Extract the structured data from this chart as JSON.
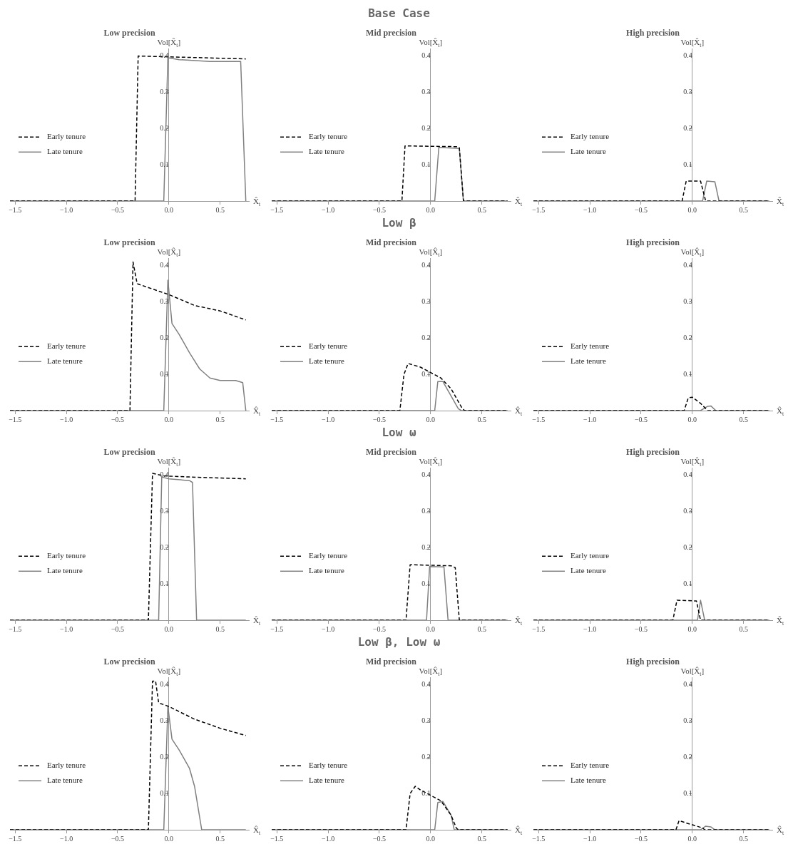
{
  "chart_data": [
    {
      "type": "line",
      "title": "Low precision",
      "xlabel": "X̂$_{t}$",
      "ylabel": "Vol[X̂$_{t}$]",
      "xlim": [
        -1.55,
        0.78
      ],
      "ylim": [
        0,
        0.42
      ],
      "xticks": [
        {
          "value": -1.5,
          "label": "−1.5"
        },
        {
          "value": -1,
          "label": "−1.0"
        },
        {
          "value": -0.5,
          "label": "−0.5"
        },
        {
          "value": 0,
          "label": "0.0"
        },
        {
          "value": 0.5,
          "label": "0.5"
        }
      ],
      "yticks": [
        0.1,
        0.2,
        0.3,
        0.4
      ],
      "legend": "left",
      "marker": "none",
      "series": [
        {
          "name": "Early tenure",
          "color": "#000000",
          "line_style": "dashed",
          "x": [
            -1.55,
            -0.33,
            -0.3,
            0.75
          ],
          "values": [
            0,
            0,
            0.4,
            0.392
          ]
        },
        {
          "name": "Late tenure",
          "color": "#808080",
          "line_style": "solid",
          "x": [
            -1.55,
            -0.05,
            -0.01,
            0.1,
            0.4,
            0.7,
            0.75
          ],
          "values": [
            0,
            0,
            0.395,
            0.39,
            0.385,
            0.385,
            0
          ]
        }
      ]
    },
    {
      "type": "line",
      "title": "Mid precision",
      "subtitle": "Base Case",
      "xlabel": "X̂$_{t}$",
      "ylabel": "Vol[X̂$_{t}$]",
      "xlim": [
        -1.55,
        0.78
      ],
      "ylim": [
        0,
        0.42
      ],
      "xticks": [
        {
          "value": -1.5,
          "label": "−1.5"
        },
        {
          "value": -1,
          "label": "−1.0"
        },
        {
          "value": -0.5,
          "label": "−0.5"
        },
        {
          "value": 0,
          "label": "0.0"
        },
        {
          "value": 0.5,
          "label": "0.5"
        }
      ],
      "yticks": [
        0.1,
        0.2,
        0.3,
        0.4
      ],
      "legend": "left",
      "marker": "none",
      "series": [
        {
          "name": "Early tenure",
          "color": "#000000",
          "line_style": "dashed",
          "x": [
            -1.55,
            -0.28,
            -0.25,
            0.25,
            0.28,
            0.32,
            0.75
          ],
          "values": [
            0,
            0,
            0.152,
            0.15,
            0.147,
            0,
            0
          ]
        },
        {
          "name": "Late tenure",
          "color": "#808080",
          "line_style": "solid",
          "x": [
            -1.55,
            0.04,
            0.08,
            0.28,
            0.32,
            0.75
          ],
          "values": [
            0,
            0,
            0.148,
            0.145,
            0,
            0
          ]
        }
      ]
    },
    {
      "type": "line",
      "title": "High precision",
      "xlabel": "X̂$_{t}$",
      "ylabel": "Vol[X̂$_{t}$]",
      "xlim": [
        -1.55,
        0.78
      ],
      "ylim": [
        0,
        0.42
      ],
      "xticks": [
        {
          "value": -1.5,
          "label": "−1.5"
        },
        {
          "value": -1,
          "label": "−1.0"
        },
        {
          "value": -0.5,
          "label": "−0.5"
        },
        {
          "value": 0,
          "label": "0.0"
        },
        {
          "value": 0.5,
          "label": "0.5"
        }
      ],
      "yticks": [
        0.1,
        0.2,
        0.3,
        0.4
      ],
      "legend": "left",
      "marker": "none",
      "series": [
        {
          "name": "Early tenure",
          "color": "#000000",
          "line_style": "dashed",
          "x": [
            -1.55,
            -0.1,
            -0.06,
            0.08,
            0.13,
            0.75
          ],
          "values": [
            0,
            0,
            0.055,
            0.055,
            0,
            0
          ]
        },
        {
          "name": "Late tenure",
          "color": "#808080",
          "line_style": "solid",
          "x": [
            -1.55,
            0.1,
            0.14,
            0.22,
            0.26,
            0.75
          ],
          "values": [
            0,
            0,
            0.055,
            0.053,
            0,
            0
          ]
        }
      ]
    },
    {
      "type": "line",
      "title": "Low precision",
      "xlabel": "X̂$_{t}$",
      "ylabel": "Vol[X̂$_{t}$]",
      "xlim": [
        -1.55,
        0.78
      ],
      "ylim": [
        0,
        0.42
      ],
      "xticks": [
        {
          "value": -1.5,
          "label": "−1.5"
        },
        {
          "value": -1,
          "label": "−1.0"
        },
        {
          "value": -0.5,
          "label": "−0.5"
        },
        {
          "value": 0,
          "label": "0.0"
        },
        {
          "value": 0.5,
          "label": "0.5"
        }
      ],
      "yticks": [
        0.1,
        0.2,
        0.3,
        0.4
      ],
      "legend": "left",
      "marker": "none",
      "series": [
        {
          "name": "Early tenure",
          "color": "#000000",
          "line_style": "dashed",
          "x": [
            -1.55,
            -0.38,
            -0.35,
            -0.31,
            0,
            0.25,
            0.5,
            0.75
          ],
          "values": [
            0,
            0,
            0.41,
            0.35,
            0.32,
            0.29,
            0.275,
            0.25
          ]
        },
        {
          "name": "Late tenure",
          "color": "#808080",
          "line_style": "solid",
          "x": [
            -1.55,
            -0.05,
            -0.01,
            0.03,
            0.1,
            0.2,
            0.3,
            0.4,
            0.5,
            0.65,
            0.72,
            0.75
          ],
          "values": [
            0,
            0,
            0.36,
            0.24,
            0.21,
            0.16,
            0.115,
            0.09,
            0.083,
            0.083,
            0.077,
            0
          ]
        }
      ]
    },
    {
      "type": "line",
      "title": "Mid precision",
      "subtitle": "Low β",
      "xlabel": "X̂$_{t}$",
      "ylabel": "Vol[X̂$_{t}$]",
      "xlim": [
        -1.55,
        0.78
      ],
      "ylim": [
        0,
        0.42
      ],
      "xticks": [
        {
          "value": -1.5,
          "label": "−1.5"
        },
        {
          "value": -1,
          "label": "−1.0"
        },
        {
          "value": -0.5,
          "label": "−0.5"
        },
        {
          "value": 0,
          "label": "0.0"
        },
        {
          "value": 0.5,
          "label": "0.5"
        }
      ],
      "yticks": [
        0.1,
        0.2,
        0.3,
        0.4
      ],
      "legend": "left",
      "marker": "none",
      "series": [
        {
          "name": "Early tenure",
          "color": "#000000",
          "line_style": "dashed",
          "x": [
            -1.55,
            -0.3,
            -0.26,
            -0.22,
            -0.1,
            0,
            0.1,
            0.2,
            0.3,
            0.33,
            0.75
          ],
          "values": [
            0,
            0,
            0.1,
            0.13,
            0.12,
            0.105,
            0.09,
            0.06,
            0.01,
            0,
            0
          ]
        },
        {
          "name": "Late tenure",
          "color": "#808080",
          "line_style": "solid",
          "x": [
            -1.55,
            0.04,
            0.07,
            0.12,
            0.2,
            0.27,
            0.3,
            0.75
          ],
          "values": [
            0,
            0,
            0.08,
            0.08,
            0.04,
            0.005,
            0,
            0
          ]
        }
      ]
    },
    {
      "type": "line",
      "title": "High precision",
      "xlabel": "X̂$_{t}$",
      "ylabel": "Vol[X̂$_{t}$]",
      "xlim": [
        -1.55,
        0.78
      ],
      "ylim": [
        0,
        0.42
      ],
      "xticks": [
        {
          "value": -1.5,
          "label": "−1.5"
        },
        {
          "value": -1,
          "label": "−1.0"
        },
        {
          "value": -0.5,
          "label": "−0.5"
        },
        {
          "value": 0,
          "label": "0.0"
        },
        {
          "value": 0.5,
          "label": "0.5"
        }
      ],
      "yticks": [
        0.1,
        0.2,
        0.3,
        0.4
      ],
      "legend": "left",
      "marker": "none",
      "series": [
        {
          "name": "Early tenure",
          "color": "#000000",
          "line_style": "dashed",
          "x": [
            -1.55,
            -0.08,
            -0.04,
            0,
            0.08,
            0.15,
            0.75
          ],
          "values": [
            0,
            0,
            0.035,
            0.037,
            0.02,
            0,
            0
          ]
        },
        {
          "name": "Late tenure",
          "color": "#808080",
          "line_style": "solid",
          "x": [
            -1.55,
            0.08,
            0.15,
            0.18,
            0.23,
            0.75
          ],
          "values": [
            0,
            0,
            0.012,
            0.013,
            0,
            0
          ]
        }
      ]
    },
    {
      "type": "line",
      "title": "Low precision",
      "xlabel": "X̂$_{t}$",
      "ylabel": "Vol[X̂$_{t}$]",
      "xlim": [
        -1.55,
        0.78
      ],
      "ylim": [
        0,
        0.42
      ],
      "xticks": [
        {
          "value": -1.5,
          "label": "−1.5"
        },
        {
          "value": -1,
          "label": "−1.0"
        },
        {
          "value": -0.5,
          "label": "−0.5"
        },
        {
          "value": 0,
          "label": "0.0"
        },
        {
          "value": 0.5,
          "label": "0.5"
        }
      ],
      "yticks": [
        0.1,
        0.2,
        0.3,
        0.4
      ],
      "legend": "left",
      "marker": "none",
      "series": [
        {
          "name": "Early tenure",
          "color": "#000000",
          "line_style": "dashed",
          "x": [
            -1.55,
            -0.2,
            -0.16,
            -0.05,
            0.2,
            0.75
          ],
          "values": [
            0,
            0,
            0.405,
            0.398,
            0.395,
            0.39
          ]
        },
        {
          "name": "Late tenure",
          "color": "#808080",
          "line_style": "solid",
          "x": [
            -1.55,
            -0.1,
            -0.07,
            0,
            0.2,
            0.23,
            0.27,
            0.75
          ],
          "values": [
            0,
            0,
            0.395,
            0.39,
            0.385,
            0.38,
            0,
            0
          ]
        }
      ]
    },
    {
      "type": "line",
      "title": "Mid precision",
      "subtitle": "Low ω",
      "xlabel": "X̂$_{t}$",
      "ylabel": "Vol[X̂$_{t}$]",
      "xlim": [
        -1.55,
        0.78
      ],
      "ylim": [
        0,
        0.42
      ],
      "xticks": [
        {
          "value": -1.5,
          "label": "−1.5"
        },
        {
          "value": -1,
          "label": "−1.0"
        },
        {
          "value": -0.5,
          "label": "−0.5"
        },
        {
          "value": 0,
          "label": "0.0"
        },
        {
          "value": 0.5,
          "label": "0.5"
        }
      ],
      "yticks": [
        0.1,
        0.2,
        0.3,
        0.4
      ],
      "legend": "left",
      "marker": "none",
      "series": [
        {
          "name": "Early tenure",
          "color": "#000000",
          "line_style": "dashed",
          "x": [
            -1.55,
            -0.24,
            -0.2,
            0.2,
            0.24,
            0.28,
            0.75
          ],
          "values": [
            0,
            0,
            0.153,
            0.15,
            0.145,
            0,
            0
          ]
        },
        {
          "name": "Late tenure",
          "color": "#808080",
          "line_style": "solid",
          "x": [
            -1.55,
            -0.04,
            -0.01,
            0.13,
            0.17,
            0.75
          ],
          "values": [
            0,
            0,
            0.148,
            0.147,
            0,
            0
          ]
        }
      ]
    },
    {
      "type": "line",
      "title": "High precision",
      "xlabel": "X̂$_{t}$",
      "ylabel": "Vol[X̂$_{t}$]",
      "xlim": [
        -1.55,
        0.78
      ],
      "ylim": [
        0,
        0.42
      ],
      "xticks": [
        {
          "value": -1.5,
          "label": "−1.5"
        },
        {
          "value": -1,
          "label": "−1.0"
        },
        {
          "value": -0.5,
          "label": "−0.5"
        },
        {
          "value": 0,
          "label": "0.0"
        },
        {
          "value": 0.5,
          "label": "0.5"
        }
      ],
      "yticks": [
        0.1,
        0.2,
        0.3,
        0.4
      ],
      "legend": "left",
      "marker": "none",
      "series": [
        {
          "name": "Early tenure",
          "color": "#000000",
          "line_style": "dashed",
          "x": [
            -1.55,
            -0.19,
            -0.15,
            0.04,
            0.08,
            0.75
          ],
          "values": [
            0,
            0,
            0.055,
            0.053,
            0,
            0
          ]
        },
        {
          "name": "Late tenure",
          "color": "#808080",
          "line_style": "solid",
          "x": [
            -1.55,
            0.05,
            0.08,
            0.12,
            0.75
          ],
          "values": [
            0,
            0,
            0.055,
            0,
            0
          ]
        }
      ]
    },
    {
      "type": "line",
      "title": "Low precision",
      "xlabel": "X̂$_{t}$",
      "ylabel": "Vol[X̂$_{t}$]",
      "xlim": [
        -1.55,
        0.78
      ],
      "ylim": [
        0,
        0.42
      ],
      "xticks": [
        {
          "value": -1.5,
          "label": "−1.5"
        },
        {
          "value": -1,
          "label": "−1.0"
        },
        {
          "value": -0.5,
          "label": "−0.5"
        },
        {
          "value": 0,
          "label": "0.0"
        },
        {
          "value": 0.5,
          "label": "0.5"
        }
      ],
      "yticks": [
        0.1,
        0.2,
        0.3,
        0.4
      ],
      "legend": "left",
      "marker": "none",
      "series": [
        {
          "name": "Early tenure",
          "color": "#000000",
          "line_style": "dashed",
          "x": [
            -1.55,
            -0.2,
            -0.16,
            -0.13,
            -0.1,
            0,
            0.25,
            0.5,
            0.75
          ],
          "values": [
            0,
            0,
            0.41,
            0.41,
            0.35,
            0.34,
            0.305,
            0.28,
            0.26
          ]
        },
        {
          "name": "Late tenure",
          "color": "#808080",
          "line_style": "solid",
          "x": [
            -1.55,
            -0.05,
            -0.01,
            0.03,
            0.1,
            0.2,
            0.25,
            0.32,
            0.75
          ],
          "values": [
            0,
            0,
            0.34,
            0.25,
            0.22,
            0.17,
            0.12,
            0,
            0
          ]
        }
      ]
    },
    {
      "type": "line",
      "title": "Mid precision",
      "subtitle": "Low β, Low ω",
      "xlabel": "X̂$_{t}$",
      "ylabel": "Vol[X̂$_{t}$]",
      "xlim": [
        -1.55,
        0.78
      ],
      "ylim": [
        0,
        0.42
      ],
      "xticks": [
        {
          "value": -1.5,
          "label": "−1.5"
        },
        {
          "value": -1,
          "label": "−1.0"
        },
        {
          "value": -0.5,
          "label": "−0.5"
        },
        {
          "value": 0,
          "label": "0.0"
        },
        {
          "value": 0.5,
          "label": "0.5"
        }
      ],
      "yticks": [
        0.1,
        0.2,
        0.3,
        0.4
      ],
      "legend": "left",
      "marker": "none",
      "series": [
        {
          "name": "Early tenure",
          "color": "#000000",
          "line_style": "dashed",
          "x": [
            -1.55,
            -0.24,
            -0.2,
            -0.15,
            -0.1,
            0.1,
            0.2,
            0.25,
            0.27,
            0.75
          ],
          "values": [
            0,
            0,
            0.1,
            0.12,
            0.11,
            0.08,
            0.04,
            0.005,
            0,
            0
          ]
        },
        {
          "name": "Late tenure",
          "color": "#808080",
          "line_style": "solid",
          "x": [
            -1.55,
            0.04,
            0.07,
            0.12,
            0.2,
            0.23,
            0.75
          ],
          "values": [
            0,
            0,
            0.075,
            0.078,
            0.04,
            0,
            0
          ]
        }
      ]
    },
    {
      "type": "line",
      "title": "High precision",
      "xlabel": "X̂$_{t}$",
      "ylabel": "Vol[X̂$_{t}$]",
      "xlim": [
        -1.55,
        0.78
      ],
      "ylim": [
        0,
        0.42
      ],
      "xticks": [
        {
          "value": -1.5,
          "label": "−1.5"
        },
        {
          "value": -1,
          "label": "−1.0"
        },
        {
          "value": -0.5,
          "label": "−0.5"
        },
        {
          "value": 0,
          "label": "0.0"
        },
        {
          "value": 0.5,
          "label": "0.5"
        }
      ],
      "yticks": [
        0.1,
        0.2,
        0.3,
        0.4
      ],
      "legend": "left",
      "marker": "none",
      "series": [
        {
          "name": "Early tenure",
          "color": "#000000",
          "line_style": "dashed",
          "x": [
            -1.55,
            -0.16,
            -0.13,
            0.1,
            0.12,
            0.75
          ],
          "values": [
            0,
            0,
            0.025,
            0.005,
            0,
            0
          ]
        },
        {
          "name": "Late tenure",
          "color": "#808080",
          "line_style": "solid",
          "x": [
            -1.55,
            0.08,
            0.13,
            0.18,
            0.22,
            0.75
          ],
          "values": [
            0,
            0,
            0.01,
            0.008,
            0,
            0
          ]
        }
      ]
    }
  ]
}
